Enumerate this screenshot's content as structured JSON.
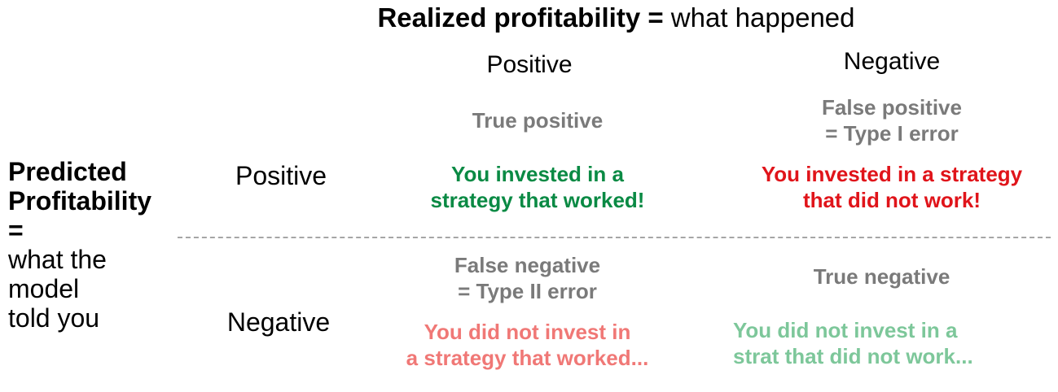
{
  "top": {
    "bold": "Realized profitability =",
    "rest": " what happened"
  },
  "columns": {
    "positive": "Positive",
    "negative": "Negative"
  },
  "left": {
    "line1": "Predicted",
    "line2": "Profitability",
    "line3": "=",
    "line4": "what the",
    "line5": "model",
    "line6": "told you"
  },
  "rows": {
    "positive": "Positive",
    "negative": "Negative"
  },
  "cells": {
    "tp": {
      "kind1": "True positive",
      "msg1": "You invested in a",
      "msg2": "strategy that worked!",
      "color": "#0a8a44"
    },
    "fp": {
      "kind1": "False positive",
      "kind2": "= Type I error",
      "msg1": "You invested in a strategy",
      "msg2": "that did not work!",
      "color": "#e0141a"
    },
    "fn": {
      "kind1": "False negative",
      "kind2": "= Type II error",
      "msg1": "You did not invest in",
      "msg2": "a strategy that worked...",
      "color": "#f07876"
    },
    "tn": {
      "kind1": "True negative",
      "msg1": "You did not invest in a",
      "msg2": "strat that did not work...",
      "color": "#7dc79a"
    }
  },
  "colors": {
    "label_gray": "#7a7a7a",
    "divider": "#a6a6a6"
  }
}
